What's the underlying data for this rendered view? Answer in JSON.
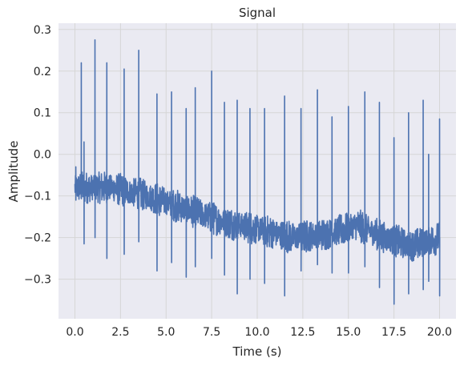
{
  "chart_data": {
    "type": "line",
    "title": "Signal",
    "xlabel": "Time (s)",
    "ylabel": "Amplitude",
    "xlim": [
      -0.9,
      20.9
    ],
    "ylim": [
      -0.395,
      0.315
    ],
    "xticks": [
      0.0,
      2.5,
      5.0,
      7.5,
      10.0,
      12.5,
      15.0,
      17.5,
      20.0
    ],
    "xtick_labels": [
      "0.0",
      "2.5",
      "5.0",
      "7.5",
      "10.0",
      "12.5",
      "15.0",
      "17.5",
      "20.0"
    ],
    "yticks": [
      -0.3,
      -0.2,
      -0.1,
      0.0,
      0.1,
      0.2,
      0.3
    ],
    "ytick_labels": [
      "−0.3",
      "−0.2",
      "−0.1",
      "0.0",
      "0.1",
      "0.2",
      "0.3"
    ],
    "grid": true,
    "colors": {
      "line": "#4c72b0",
      "plot_background": "#eaeaf2",
      "grid": "#d6d6d6"
    },
    "series": [
      {
        "baseline": [
          [
            0.0,
            -0.08
          ],
          [
            2.0,
            -0.08
          ],
          [
            4.0,
            -0.1
          ],
          [
            6.0,
            -0.13
          ],
          [
            8.0,
            -0.16
          ],
          [
            10.0,
            -0.18
          ],
          [
            12.0,
            -0.2
          ],
          [
            14.0,
            -0.19
          ],
          [
            15.5,
            -0.17
          ],
          [
            17.0,
            -0.2
          ],
          [
            18.5,
            -0.22
          ],
          [
            20.0,
            -0.2
          ]
        ],
        "spikes": [
          {
            "t": 0.05,
            "high": -0.03,
            "low": -0.11
          },
          {
            "t": 0.35,
            "high": 0.22,
            "low": -0.05
          },
          {
            "t": 0.5,
            "high": 0.03,
            "low": -0.215
          },
          {
            "t": 1.1,
            "high": 0.275,
            "low": -0.2
          },
          {
            "t": 1.75,
            "high": 0.22,
            "low": -0.25
          },
          {
            "t": 2.7,
            "high": 0.205,
            "low": -0.24
          },
          {
            "t": 3.5,
            "high": 0.25,
            "low": -0.21
          },
          {
            "t": 4.5,
            "high": 0.145,
            "low": -0.28
          },
          {
            "t": 5.3,
            "high": 0.15,
            "low": -0.26
          },
          {
            "t": 6.1,
            "high": 0.11,
            "low": -0.295
          },
          {
            "t": 6.6,
            "high": 0.16,
            "low": -0.27
          },
          {
            "t": 7.5,
            "high": 0.2,
            "low": -0.25
          },
          {
            "t": 8.2,
            "high": 0.125,
            "low": -0.29
          },
          {
            "t": 8.9,
            "high": 0.13,
            "low": -0.335
          },
          {
            "t": 9.6,
            "high": 0.11,
            "low": -0.3
          },
          {
            "t": 10.4,
            "high": 0.11,
            "low": -0.31
          },
          {
            "t": 11.5,
            "high": 0.14,
            "low": -0.34
          },
          {
            "t": 12.4,
            "high": 0.11,
            "low": -0.28
          },
          {
            "t": 13.3,
            "high": 0.155,
            "low": -0.265
          },
          {
            "t": 14.1,
            "high": 0.09,
            "low": -0.285
          },
          {
            "t": 15.0,
            "high": 0.115,
            "low": -0.285
          },
          {
            "t": 15.9,
            "high": 0.15,
            "low": -0.27
          },
          {
            "t": 16.7,
            "high": 0.125,
            "low": -0.32
          },
          {
            "t": 17.5,
            "high": 0.04,
            "low": -0.36
          },
          {
            "t": 18.3,
            "high": 0.1,
            "low": -0.335
          },
          {
            "t": 19.1,
            "high": 0.13,
            "low": -0.325
          },
          {
            "t": 19.4,
            "high": 0.0,
            "low": -0.305
          },
          {
            "t": 20.0,
            "high": 0.085,
            "low": -0.34
          }
        ]
      }
    ]
  }
}
